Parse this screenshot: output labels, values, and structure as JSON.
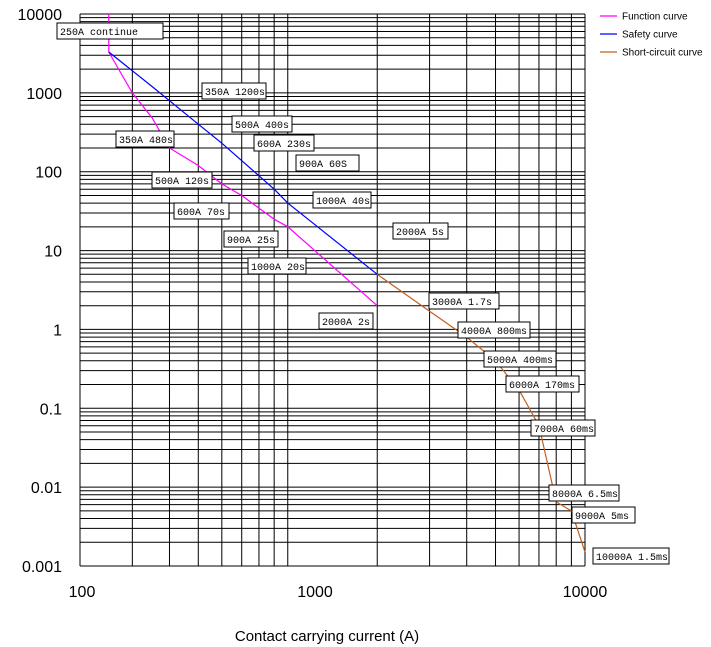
{
  "chart_data": {
    "type": "line",
    "x_scale": "log",
    "y_scale": "log",
    "xlim": [
      200,
      10000
    ],
    "ylim": [
      0.001,
      10000
    ],
    "xlabel": "Contact carrying current (A)",
    "ylabel": "",
    "x_ticks": [
      "100",
      "1000",
      "10000"
    ],
    "y_ticks": [
      "10000",
      "1000",
      "100",
      "10",
      "1",
      "0.1",
      "0.01",
      "0.001"
    ],
    "grid": true,
    "legend_position": "top-right",
    "series": [
      {
        "name": "Function curve",
        "color": "#ff00ff",
        "x": [
          250,
          250,
          300,
          350,
          400,
          500,
          600,
          700,
          900,
          1000,
          2000
        ],
        "y": [
          10000,
          3300,
          1000,
          480,
          200,
          120,
          70,
          50,
          25,
          20,
          2
        ]
      },
      {
        "name": "Safety curve",
        "color": "#0000ff",
        "x": [
          250,
          350,
          500,
          600,
          900,
          1000,
          2000
        ],
        "y": [
          3300,
          1200,
          400,
          230,
          60,
          40,
          5
        ]
      },
      {
        "name": "Short-circuit curve",
        "color": "#c06020",
        "x": [
          2000,
          3000,
          4000,
          5000,
          6000,
          7000,
          8000,
          9000,
          10000
        ],
        "y": [
          5,
          1.7,
          0.8,
          0.4,
          0.17,
          0.06,
          0.0065,
          0.005,
          0.0015
        ]
      }
    ],
    "annotations": [
      {
        "text": "250A continue",
        "x": 250,
        "y": 10000
      },
      {
        "text": "350A  1200s",
        "x": 350,
        "y": 1200
      },
      {
        "text": "500A  400s",
        "x": 500,
        "y": 400
      },
      {
        "text": "600A  230s",
        "x": 600,
        "y": 230
      },
      {
        "text": "350A  480s",
        "x": 350,
        "y": 480
      },
      {
        "text": "900A  60S",
        "x": 900,
        "y": 60
      },
      {
        "text": "500A  120s",
        "x": 500,
        "y": 120
      },
      {
        "text": "1000A  40s",
        "x": 1000,
        "y": 40
      },
      {
        "text": "600A  70s",
        "x": 600,
        "y": 70
      },
      {
        "text": "2000A  5s",
        "x": 2000,
        "y": 5
      },
      {
        "text": "900A  25s",
        "x": 900,
        "y": 25
      },
      {
        "text": "1000A  20s",
        "x": 1000,
        "y": 20
      },
      {
        "text": "3000A  1.7s",
        "x": 3000,
        "y": 1.7
      },
      {
        "text": "2000A  2s",
        "x": 2000,
        "y": 2
      },
      {
        "text": "4000A  800ms",
        "x": 4000,
        "y": 0.8
      },
      {
        "text": "5000A  400ms",
        "x": 5000,
        "y": 0.4
      },
      {
        "text": "6000A  170ms",
        "x": 6000,
        "y": 0.17
      },
      {
        "text": "7000A  60ms",
        "x": 7000,
        "y": 0.06
      },
      {
        "text": "8000A  6.5ms",
        "x": 8000,
        "y": 0.0065
      },
      {
        "text": "9000A  5ms",
        "x": 9000,
        "y": 0.005
      },
      {
        "text": "10000A  1.5ms",
        "x": 10000,
        "y": 0.0015
      }
    ]
  }
}
